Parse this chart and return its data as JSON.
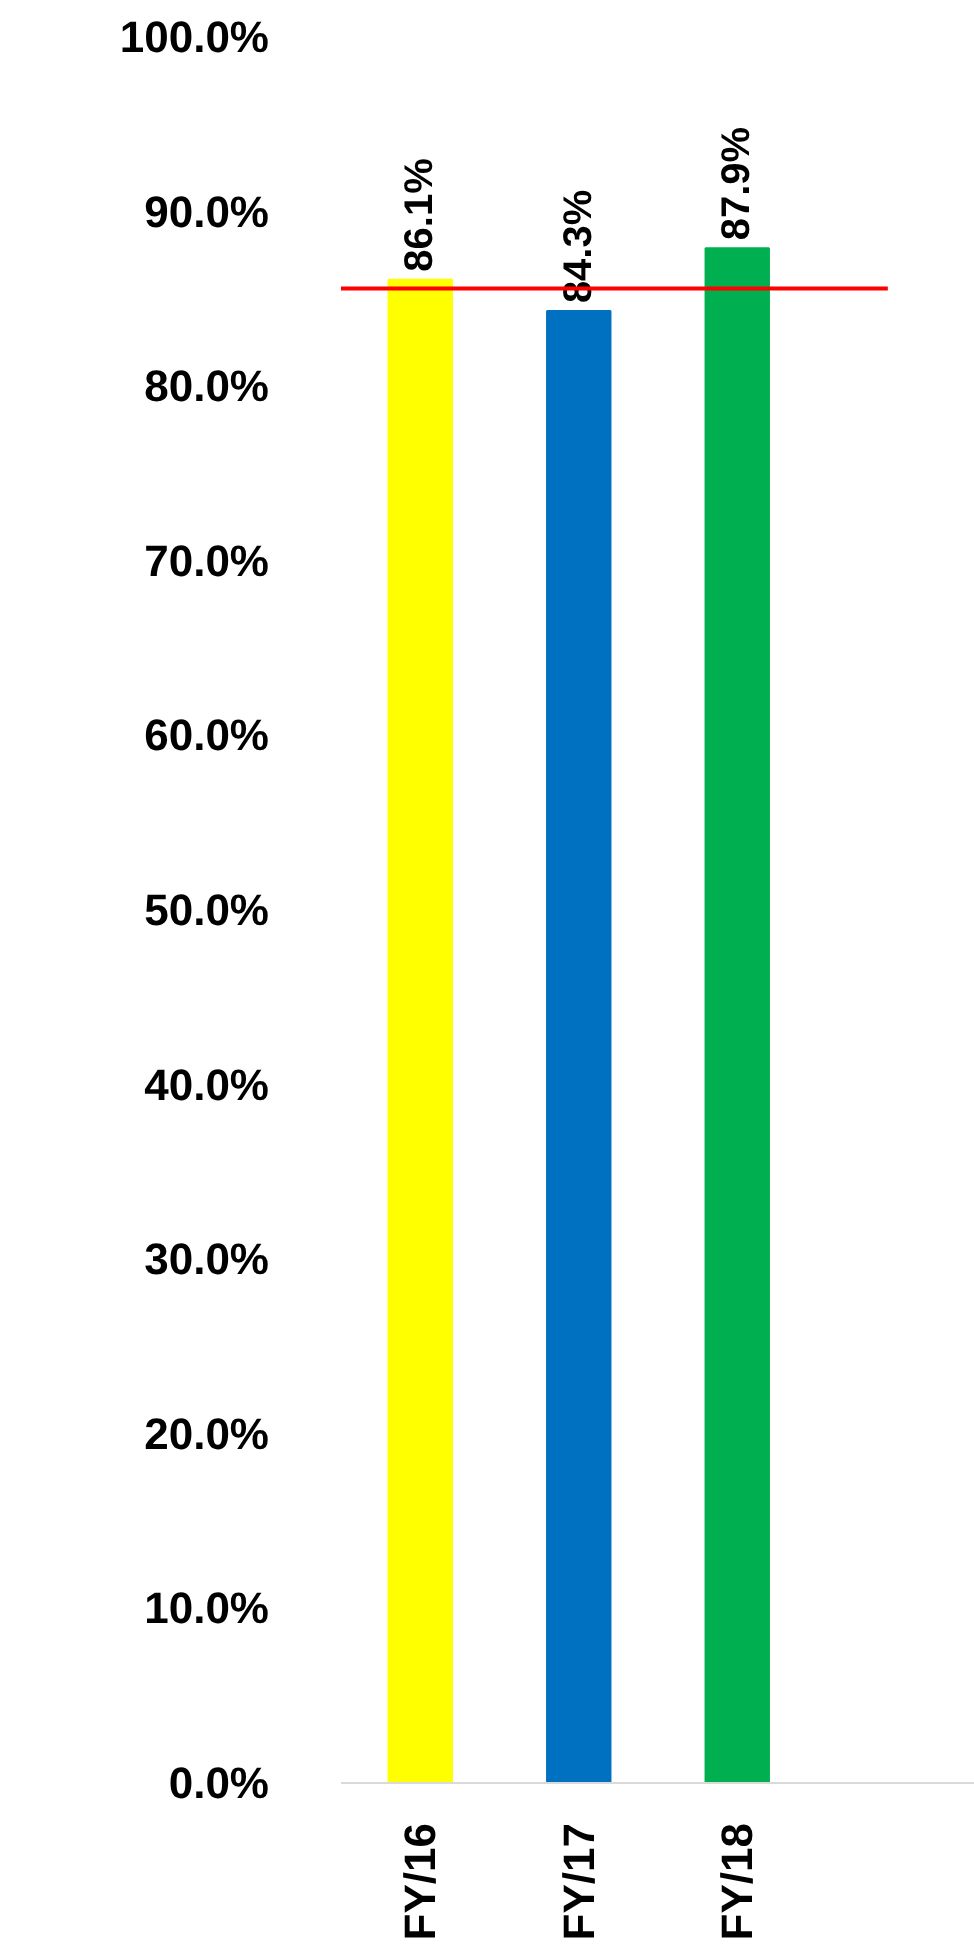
{
  "chart_data": {
    "type": "bar",
    "categories": [
      "FY/16",
      "FY/17",
      "FY/18",
      null
    ],
    "values": [
      86.1,
      84.3,
      87.9,
      null
    ],
    "colors": [
      "#ffff00",
      "#0070c0",
      "#00b050",
      "#ffffff"
    ],
    "value_labels": [
      "86.1%",
      "84.3%",
      "87.9%",
      null
    ],
    "ylim": [
      0,
      100
    ],
    "yticks": [
      {
        "value": 0,
        "label": "0.0%"
      },
      {
        "value": 10,
        "label": "10.0%"
      },
      {
        "value": 20,
        "label": "20.0%"
      },
      {
        "value": 30,
        "label": "30.0%"
      },
      {
        "value": 40,
        "label": "40.0%"
      },
      {
        "value": 50,
        "label": "50.0%"
      },
      {
        "value": 60,
        "label": "60.0%"
      },
      {
        "value": 70,
        "label": "70.0%"
      },
      {
        "value": 80,
        "label": "80.0%"
      },
      {
        "value": 90,
        "label": "90.0%"
      },
      {
        "value": 100,
        "label": "100.0%"
      }
    ],
    "ref_lines": [
      {
        "axis": "y",
        "value": 85.6,
        "color": "#ff0000"
      }
    ],
    "grid": false
  }
}
